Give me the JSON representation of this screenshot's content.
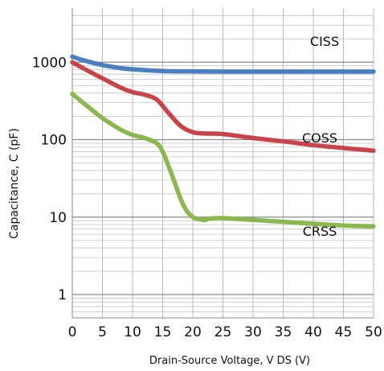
{
  "chart_data": {
    "type": "line",
    "title": "",
    "xlabel": "Drain-Source Voltage, V DS   (V)",
    "ylabel": "Capacitance, C (pF)",
    "xscale": "linear",
    "yscale": "log",
    "xlim": [
      0,
      50
    ],
    "ylim": [
      0.5,
      5000
    ],
    "xticks": [
      0,
      5,
      10,
      15,
      20,
      25,
      30,
      35,
      40,
      45,
      50
    ],
    "yticks": [
      1,
      10,
      100,
      1000
    ],
    "ytick_labels": [
      "1",
      "10",
      "100",
      "1000"
    ],
    "grid": true,
    "legend": "none",
    "series": [
      {
        "name": "CISS",
        "color": "#4a7fc1",
        "x": [
          0,
          2,
          5,
          8,
          10,
          15,
          20,
          25,
          30,
          35,
          40,
          45,
          50
        ],
        "y": [
          1180,
          1050,
          920,
          840,
          810,
          770,
          760,
          755,
          755,
          755,
          755,
          755,
          755
        ]
      },
      {
        "name": "COSS",
        "color": "#c9434a",
        "x": [
          0,
          2,
          5,
          8,
          10,
          12,
          14,
          16,
          18,
          20,
          22,
          25,
          30,
          35,
          40,
          45,
          50
        ],
        "y": [
          1000,
          820,
          620,
          470,
          410,
          380,
          330,
          220,
          150,
          125,
          120,
          118,
          105,
          95,
          85,
          78,
          72
        ]
      },
      {
        "name": "CRSS",
        "color": "#8ab84e",
        "x": [
          0,
          2,
          5,
          8,
          10,
          12,
          14,
          15,
          16,
          17,
          18,
          19,
          20,
          21,
          22,
          23,
          25,
          30,
          35,
          40,
          45,
          50
        ],
        "y": [
          390,
          290,
          190,
          135,
          115,
          105,
          90,
          70,
          45,
          28,
          17,
          12,
          10,
          9.4,
          9.2,
          9.6,
          9.7,
          9.2,
          8.7,
          8.2,
          7.8,
          7.6
        ]
      }
    ]
  }
}
